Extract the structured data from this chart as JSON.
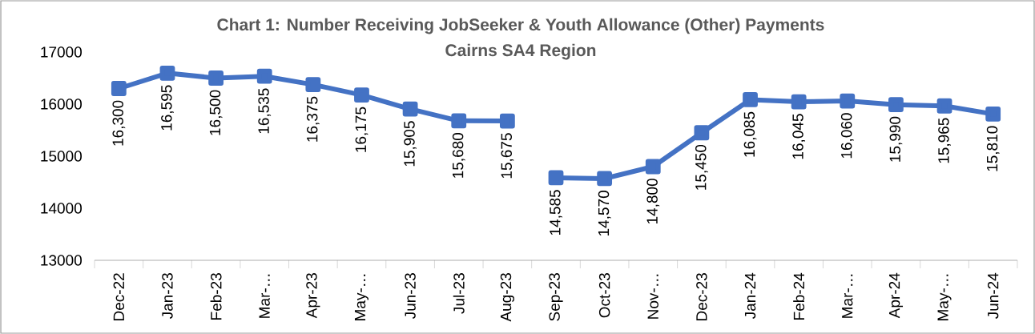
{
  "chart_data": {
    "type": "line",
    "title": "Chart 1: Number Receiving JobSeeker & Youth Allowance (Other) Payments",
    "subtitle": "Cairns SA4 Region",
    "categories": [
      "Dec-22",
      "Jan-23",
      "Feb-23",
      "Mar-…",
      "Apr-23",
      "May-…",
      "Jun-23",
      "Jul-23",
      "Aug-23",
      "Sep-23",
      "Oct-23",
      "Nov-…",
      "Dec-23",
      "Jan-24",
      "Feb-24",
      "Mar-…",
      "Apr-24",
      "May-…",
      "Jun-24"
    ],
    "series": [
      {
        "color": "#4472c4",
        "values": [
          16300,
          16595,
          16500,
          16535,
          16375,
          16175,
          15905,
          15680,
          15675,
          null,
          null,
          null,
          null,
          null,
          null,
          null,
          null,
          null,
          null
        ],
        "value_labels": [
          "16,300",
          "16,595",
          "16,500",
          "16,535",
          "16,375",
          "16,175",
          "15,905",
          "15,680",
          "15,675",
          null,
          null,
          null,
          null,
          null,
          null,
          null,
          null,
          null,
          null
        ]
      },
      {
        "color": "#4472c4",
        "values": [
          null,
          null,
          null,
          null,
          null,
          null,
          null,
          null,
          null,
          14585,
          14570,
          14800,
          15450,
          16085,
          16045,
          16060,
          15990,
          15965,
          15810
        ],
        "value_labels": [
          null,
          null,
          null,
          null,
          null,
          null,
          null,
          null,
          null,
          "14,585",
          "14,570",
          "14,800",
          "15,450",
          "16,085",
          "16,045",
          "16,060",
          "15,990",
          "15,965",
          "15,810"
        ]
      }
    ],
    "ylim": [
      13000,
      17000
    ],
    "yticks": [
      13000,
      14000,
      15000,
      16000,
      17000
    ],
    "marker": "square",
    "line_style": "solid"
  }
}
